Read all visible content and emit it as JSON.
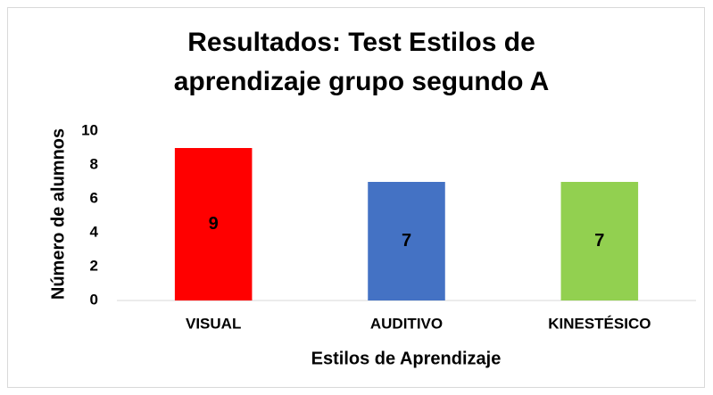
{
  "chart_data": {
    "type": "bar",
    "title": "Resultados: Test Estilos de aprendizaje grupo segundo A",
    "x_label": "Estilos de Aprendizaje",
    "y_label": "Número de alumnos",
    "categories": [
      "VISUAL",
      "AUDITIVO",
      "KINESTÉSICO"
    ],
    "values": [
      9,
      7,
      7
    ],
    "colors": [
      "#ff0000",
      "#4472c4",
      "#92d050"
    ],
    "ylim": [
      0,
      10
    ],
    "yticks": [
      0,
      2,
      4,
      6,
      8,
      10
    ],
    "grid": false
  }
}
